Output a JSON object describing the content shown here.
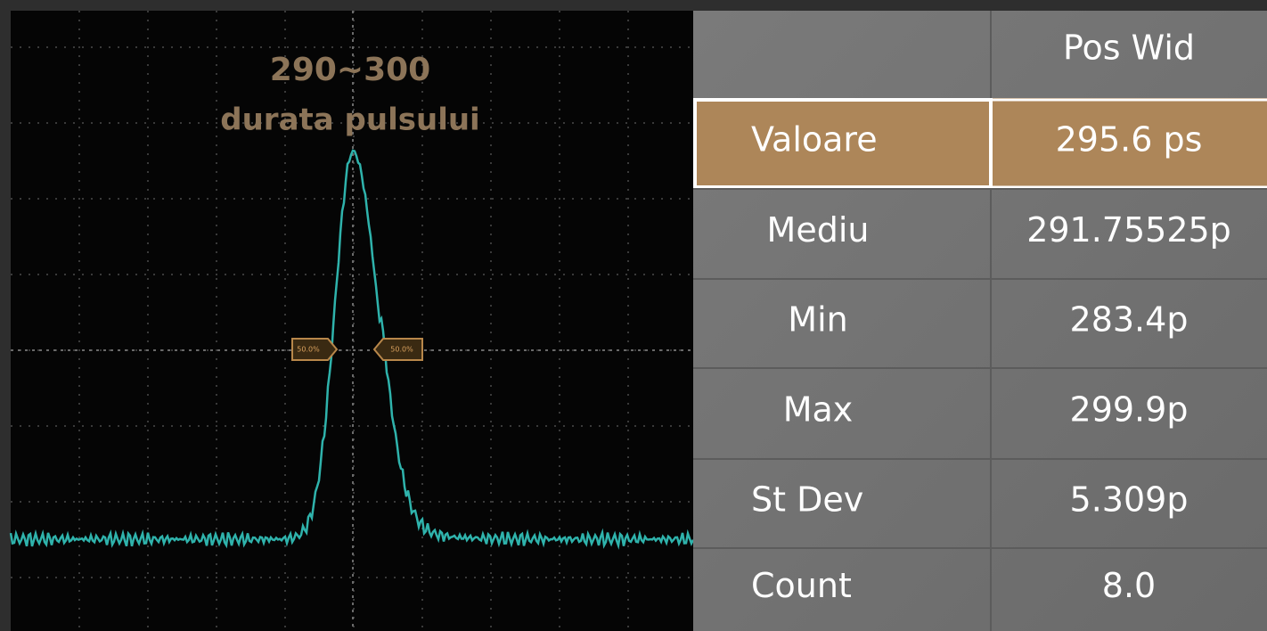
{
  "scope": {
    "title": "290~300",
    "subtitle": "durata pulsului",
    "markers": [
      "50.0%",
      "50.0%"
    ]
  },
  "table": {
    "header": "Pos Wid",
    "rows": [
      [
        "Valoare",
        "295.6 ps"
      ],
      [
        "Mediu",
        "291.75525p"
      ],
      [
        "Min",
        "283.4p"
      ],
      [
        "Max",
        "299.9p"
      ],
      [
        "St  Dev",
        "5.309p"
      ],
      [
        "Count",
        "8.0"
      ]
    ]
  }
}
